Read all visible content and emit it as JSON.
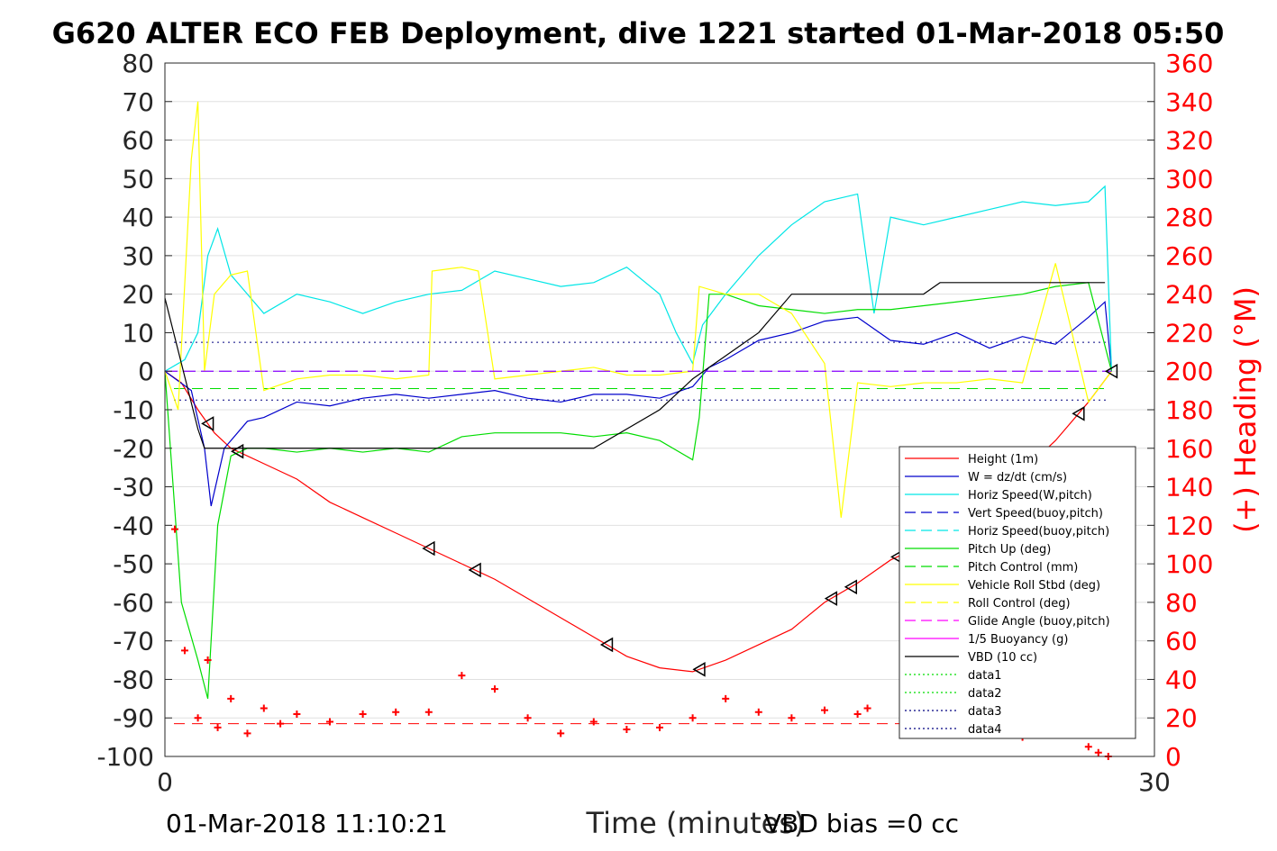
{
  "title": "G620 ALTER ECO FEB Deployment, dive 1221 started 01-Mar-2018 05:50",
  "footer": {
    "datetime": "01-Mar-2018 11:10:21",
    "vbd_bias": "VBD bias =0 cc"
  },
  "chart_data": {
    "type": "line",
    "xlabel": "Time (minutes)",
    "ylabel": "",
    "y2label": "(+) Heading (°M)",
    "xlim": [
      0,
      30
    ],
    "ylim": [
      -100,
      80
    ],
    "y2lim": [
      0,
      360
    ],
    "xticks": [
      "0",
      "30"
    ],
    "yticks": [
      "80",
      "70",
      "60",
      "50",
      "40",
      "30",
      "20",
      "10",
      "0",
      "-10",
      "-20",
      "-30",
      "-40",
      "-50",
      "-60",
      "-70",
      "-80",
      "-90",
      "-100"
    ],
    "y2ticks": [
      "360",
      "340",
      "320",
      "300",
      "280",
      "260",
      "240",
      "220",
      "200",
      "180",
      "160",
      "140",
      "120",
      "100",
      "80",
      "60",
      "40",
      "20",
      "0"
    ],
    "grid": "horizontal",
    "legend_position": "right",
    "colors": {
      "height": "#ff0000",
      "w": "#0000cc",
      "horiz_speed": "#00e6e6",
      "pitch": "#00dd00",
      "roll": "#ffff00",
      "glide": "#ff00ff",
      "vbd": "#000000",
      "heading": "#ff0000",
      "purple_zero": "#8800ff",
      "data_lines": "#000080"
    },
    "legend": [
      "Height (1m)",
      "W = dz/dt (cm/s)",
      "Horiz Speed(W,pitch)",
      "Vert Speed(buoy,pitch)",
      "Horiz Speed(buoy,pitch)",
      "Pitch Up (deg)",
      "Pitch Control (mm)",
      "Vehicle Roll Stbd (deg)",
      "Roll Control (deg)",
      "Glide Angle (buoy,pitch)",
      "1/5 Buoyancy (g)",
      "VBD (10 cc)",
      "data1",
      "data2",
      "data3",
      "data4"
    ],
    "series": [
      {
        "name": "Height (1m)",
        "x": [
          0,
          0.5,
          1,
          1.5,
          2,
          3,
          4,
          5,
          6,
          7,
          8,
          9,
          10,
          11,
          12,
          13,
          14,
          15,
          16,
          17,
          18,
          19,
          20,
          21,
          22,
          23,
          24,
          25,
          26,
          27,
          28,
          28.7
        ],
        "values": [
          0,
          -3,
          -10,
          -16,
          -20,
          -24,
          -28,
          -34,
          -38,
          -42,
          -46,
          -50,
          -54,
          -59,
          -64,
          -69,
          -74,
          -77,
          -78,
          -75,
          -71,
          -67,
          -60,
          -55,
          -49,
          -45,
          -40,
          -34,
          -26,
          -18,
          -8,
          0
        ]
      },
      {
        "name": "W = dz/dt (cm/s)",
        "x": [
          0,
          0.8,
          1.2,
          1.4,
          1.8,
          2.5,
          3,
          4,
          5,
          6,
          7,
          8,
          9,
          10,
          11,
          12,
          13,
          14,
          15,
          16,
          16.5,
          17,
          18,
          19,
          20,
          21,
          22,
          23,
          24,
          25,
          26,
          27,
          28,
          28.5,
          28.7
        ],
        "values": [
          0,
          -5,
          -20,
          -35,
          -20,
          -13,
          -12,
          -8,
          -9,
          -7,
          -6,
          -7,
          -6,
          -5,
          -7,
          -8,
          -6,
          -6,
          -7,
          -4,
          1,
          3,
          8,
          10,
          13,
          14,
          8,
          7,
          10,
          6,
          9,
          7,
          14,
          18,
          0
        ]
      },
      {
        "name": "Horiz Speed(W,pitch)",
        "x": [
          0,
          0.6,
          1,
          1.3,
          1.6,
          2,
          2.5,
          3,
          4,
          5,
          6,
          7,
          8,
          9,
          10,
          11,
          12,
          13,
          14,
          15,
          15.5,
          16,
          16.3,
          17,
          18,
          19,
          20,
          21,
          21.5,
          22,
          23,
          24,
          25,
          26,
          27,
          28,
          28.5,
          28.7
        ],
        "values": [
          0,
          3,
          10,
          30,
          37,
          25,
          20,
          15,
          20,
          18,
          15,
          18,
          20,
          21,
          26,
          24,
          22,
          23,
          27,
          20,
          10,
          2,
          12,
          20,
          30,
          38,
          44,
          46,
          15,
          40,
          38,
          40,
          42,
          44,
          43,
          44,
          48,
          0
        ]
      },
      {
        "name": "Pitch Up (deg)",
        "x": [
          0,
          0.5,
          1,
          1.3,
          1.6,
          2,
          2.5,
          3,
          4,
          5,
          6,
          7,
          8,
          9,
          10,
          11,
          12,
          13,
          14,
          15,
          16,
          16.2,
          16.5,
          17,
          18,
          19,
          20,
          21,
          22,
          23,
          24,
          25,
          26,
          27,
          28,
          28.7
        ],
        "values": [
          0,
          -60,
          -75,
          -85,
          -40,
          -22,
          -20,
          -20,
          -21,
          -20,
          -21,
          -20,
          -21,
          -17,
          -16,
          -16,
          -16,
          -17,
          -16,
          -18,
          -23,
          -12,
          20,
          20,
          17,
          16,
          15,
          16,
          16,
          17,
          18,
          19,
          20,
          22,
          23,
          0
        ]
      },
      {
        "name": "Vehicle Roll Stbd (deg)",
        "x": [
          0,
          0.4,
          0.8,
          1,
          1.2,
          1.5,
          2,
          2.5,
          3,
          4,
          5,
          6,
          7,
          8,
          8.1,
          9,
          9.5,
          10,
          11,
          12,
          13,
          14,
          15,
          16,
          16.2,
          17,
          18,
          19,
          20,
          20.5,
          21,
          22,
          23,
          24,
          25,
          26,
          27,
          28,
          28.7
        ],
        "values": [
          0,
          -10,
          55,
          70,
          0,
          20,
          25,
          26,
          -5,
          -2,
          -1,
          -1,
          -2,
          -1,
          26,
          27,
          26,
          -2,
          -1,
          0,
          1,
          -1,
          -1,
          0,
          22,
          20,
          20,
          15,
          2,
          -38,
          -3,
          -4,
          -3,
          -3,
          -2,
          -3,
          28,
          -8,
          0
        ]
      },
      {
        "name": "1/5 Buoyancy (g)",
        "x": [
          0,
          0.5,
          1,
          1.5,
          2,
          5,
          10,
          16,
          16.2,
          16.3,
          28.7
        ],
        "values": [
          0,
          0,
          0,
          0,
          0,
          0,
          0,
          0,
          0,
          0,
          0
        ]
      },
      {
        "name": "VBD (10 cc)",
        "x": [
          0,
          1,
          1.2,
          2,
          2.5,
          10,
          13,
          15,
          16,
          17,
          18,
          19,
          22,
          23,
          23.5,
          28.5
        ],
        "values": [
          19,
          -15,
          -20,
          -20,
          -20,
          -20,
          -20,
          -10,
          -2,
          4,
          10,
          20,
          20,
          20,
          23,
          23
        ]
      },
      {
        "name": "Heading",
        "x": [
          0.3,
          0.6,
          1,
          1.3,
          1.6,
          2,
          2.5,
          3,
          3.5,
          4,
          5,
          6,
          7,
          8,
          9,
          10,
          11,
          12,
          13,
          14,
          15,
          16,
          17,
          18,
          19,
          20,
          21,
          21.3,
          22.5,
          23,
          24,
          25,
          26,
          27,
          28,
          28.3,
          28.6
        ],
        "values": [
          118,
          55,
          20,
          50,
          15,
          30,
          12,
          25,
          17,
          22,
          18,
          22,
          23,
          23,
          42,
          35,
          20,
          12,
          18,
          14,
          15,
          20,
          30,
          23,
          20,
          24,
          22,
          25,
          20,
          18,
          15,
          12,
          10,
          20,
          5,
          2,
          0
        ]
      }
    ]
  }
}
